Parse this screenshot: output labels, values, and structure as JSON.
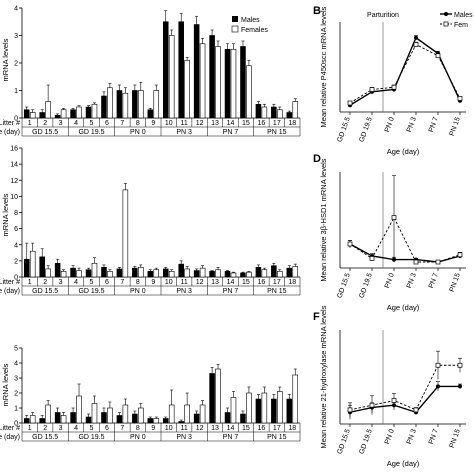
{
  "figure": {
    "panel_letters": [
      "B",
      "D",
      "F"
    ],
    "parturition_label": "Parturition",
    "legend": {
      "males": "Males",
      "females": "Females"
    },
    "legend_right": {
      "males": "Males",
      "females": "Fem"
    },
    "litter_label": "Litter #",
    "age_label": "Age (day)",
    "litters": [
      "1",
      "2",
      "3",
      "4",
      "5",
      "6",
      "7",
      "8",
      "9",
      "10",
      "11",
      "12",
      "13",
      "14",
      "15",
      "16",
      "17",
      "18"
    ],
    "age_groups": [
      "GD 15.5",
      "GD 19.5",
      "PN 0",
      "PN 3",
      "PN 7",
      "PN 15"
    ],
    "right_x_ticks": [
      "GD 15.5",
      "GD 19.5",
      "PN 0",
      "PN 3",
      "PN 7",
      "PN 15"
    ],
    "right_x_label": "Age (day)"
  },
  "chart_data": [
    {
      "type": "bar",
      "ylabel": "mRNA levels",
      "ylim": [
        0,
        4
      ],
      "yticks": [
        0,
        1,
        2,
        3,
        4
      ],
      "categories": [
        "1",
        "2",
        "3",
        "4",
        "5",
        "6",
        "7",
        "8",
        "9",
        "10",
        "11",
        "12",
        "13",
        "14",
        "15",
        "16",
        "17",
        "18"
      ],
      "series": [
        {
          "name": "Males",
          "values": [
            0.3,
            0.2,
            0.1,
            0.3,
            0.4,
            0.8,
            1.0,
            1.0,
            0.3,
            3.5,
            3.5,
            3.4,
            3.0,
            2.5,
            2.6,
            0.5,
            0.4,
            0.2
          ],
          "errors": [
            0.1,
            0.1,
            0.05,
            0.05,
            0.05,
            0.15,
            0.2,
            0.2,
            0.05,
            0.4,
            0.3,
            0.3,
            0.2,
            0.2,
            0.2,
            0.1,
            0.1,
            0.05
          ]
        },
        {
          "name": "Females",
          "values": [
            0.2,
            0.6,
            0.3,
            0.4,
            0.5,
            1.1,
            0.9,
            1.0,
            1.0,
            3.0,
            2.1,
            2.7,
            2.6,
            2.5,
            1.9,
            0.4,
            0.3,
            0.6
          ],
          "errors": [
            0.1,
            0.6,
            0.05,
            0.05,
            0.05,
            0.15,
            0.2,
            0.3,
            0.2,
            0.2,
            0.1,
            0.2,
            0.2,
            0.2,
            0.2,
            0.1,
            0.1,
            0.1
          ]
        }
      ]
    },
    {
      "type": "bar",
      "ylabel": "mRNA levels",
      "ylim": [
        0,
        16
      ],
      "yticks": [
        0,
        2,
        4,
        6,
        8,
        10,
        12,
        14,
        16
      ],
      "categories": [
        "1",
        "2",
        "3",
        "4",
        "5",
        "6",
        "7",
        "8",
        "9",
        "10",
        "11",
        "12",
        "13",
        "14",
        "15",
        "16",
        "17",
        "18"
      ],
      "series": [
        {
          "name": "Males",
          "values": [
            2.2,
            2.5,
            1.7,
            1.1,
            0.9,
            1.2,
            1.0,
            1.1,
            0.7,
            1.0,
            1.6,
            0.8,
            0.7,
            0.7,
            0.5,
            1.2,
            1.4,
            1.1
          ],
          "errors": [
            2.0,
            1.0,
            0.5,
            0.3,
            0.2,
            0.3,
            0.2,
            0.2,
            0.2,
            0.2,
            0.4,
            0.2,
            0.1,
            0.1,
            0.1,
            0.3,
            0.3,
            0.3
          ]
        },
        {
          "name": "Females",
          "values": [
            3.2,
            1.0,
            0.7,
            0.8,
            1.7,
            0.7,
            10.8,
            1.2,
            0.9,
            0.7,
            1.0,
            1.1,
            0.9,
            0.5,
            0.6,
            0.9,
            0.7,
            1.3
          ],
          "errors": [
            1.0,
            0.4,
            0.2,
            0.3,
            0.7,
            0.2,
            0.8,
            0.3,
            0.2,
            0.2,
            0.3,
            0.3,
            0.3,
            0.1,
            0.1,
            0.2,
            0.2,
            0.3
          ]
        }
      ]
    },
    {
      "type": "bar",
      "ylabel": "mRNA levels",
      "ylim": [
        0,
        5
      ],
      "yticks": [
        0,
        1,
        2,
        3,
        4,
        5
      ],
      "categories": [
        "1",
        "2",
        "3",
        "4",
        "5",
        "6",
        "7",
        "8",
        "9",
        "10",
        "11",
        "12",
        "13",
        "14",
        "15",
        "16",
        "17",
        "18"
      ],
      "series": [
        {
          "name": "Males",
          "values": [
            0.3,
            0.3,
            0.7,
            0.7,
            0.4,
            0.7,
            0.5,
            0.6,
            0.3,
            0.3,
            0.1,
            0.6,
            3.3,
            0.7,
            0.6,
            1.6,
            1.6,
            1.6
          ],
          "errors": [
            0.2,
            0.2,
            0.3,
            0.3,
            0.2,
            0.3,
            0.2,
            0.2,
            0.1,
            0.1,
            0.1,
            0.2,
            0.4,
            0.3,
            0.2,
            0.3,
            0.3,
            0.3
          ]
        },
        {
          "name": "Females",
          "values": [
            0.5,
            1.2,
            0.5,
            1.8,
            1.3,
            1.0,
            1.2,
            1.0,
            0.3,
            1.2,
            1.2,
            1.2,
            3.6,
            1.7,
            2.0,
            2.0,
            2.1,
            3.2
          ],
          "errors": [
            0.2,
            0.3,
            0.2,
            0.8,
            0.5,
            0.4,
            0.4,
            0.3,
            0.1,
            1.0,
            0.8,
            0.3,
            0.3,
            0.4,
            0.4,
            0.4,
            0.3,
            0.4
          ]
        }
      ]
    },
    {
      "type": "line",
      "ylabel": "Mean relative P450scc mRNA levels",
      "x": [
        "GD 15.5",
        "GD 19.5",
        "PN 0",
        "PN 3",
        "PN 7",
        "PN 15"
      ],
      "ylim": [
        0,
        4
      ],
      "series": [
        {
          "name": "Males",
          "values": [
            0.3,
            0.9,
            1.0,
            3.3,
            2.6,
            0.5
          ],
          "errors": [
            0.05,
            0.1,
            0.1,
            0.1,
            0.1,
            0.05
          ]
        },
        {
          "name": "Females",
          "values": [
            0.4,
            1.0,
            1.1,
            3.0,
            2.5,
            0.6
          ],
          "errors": [
            0.05,
            0.1,
            0.1,
            0.1,
            0.1,
            0.05
          ]
        }
      ]
    },
    {
      "type": "line",
      "ylabel": "Mean relative 3β-HSD1 mRNA levels",
      "x": [
        "GD 15.5",
        "GD 19.5",
        "PN 0",
        "PN 3",
        "PN 7",
        "PN 15"
      ],
      "ylim": [
        0,
        8
      ],
      "series": [
        {
          "name": "Males",
          "values": [
            2.0,
            1.0,
            0.7,
            0.7,
            0.5,
            1.0
          ],
          "errors": [
            0.3,
            0.2,
            0.2,
            0.1,
            0.1,
            0.2
          ]
        },
        {
          "name": "Females",
          "values": [
            2.0,
            0.8,
            4.2,
            0.5,
            0.5,
            1.1
          ],
          "errors": [
            0.3,
            0.2,
            3.5,
            0.1,
            0.1,
            0.2
          ]
        }
      ]
    },
    {
      "type": "line",
      "ylabel": "Mean relative 21-hydroxylase mRNA levels",
      "x": [
        "GD 15.5",
        "GD 19.5",
        "PN 0",
        "PN 3",
        "PN 7",
        "PN 15"
      ],
      "ylim": [
        0,
        4
      ],
      "series": [
        {
          "name": "Males",
          "values": [
            0.5,
            0.7,
            0.8,
            0.5,
            1.6,
            1.6
          ],
          "errors": [
            0.3,
            0.2,
            0.2,
            0.1,
            0.2,
            0.1
          ]
        },
        {
          "name": "Females",
          "values": [
            0.6,
            0.8,
            1.0,
            0.6,
            2.5,
            2.5
          ],
          "errors": [
            0.3,
            0.4,
            0.3,
            0.1,
            0.6,
            0.3
          ]
        }
      ]
    }
  ]
}
